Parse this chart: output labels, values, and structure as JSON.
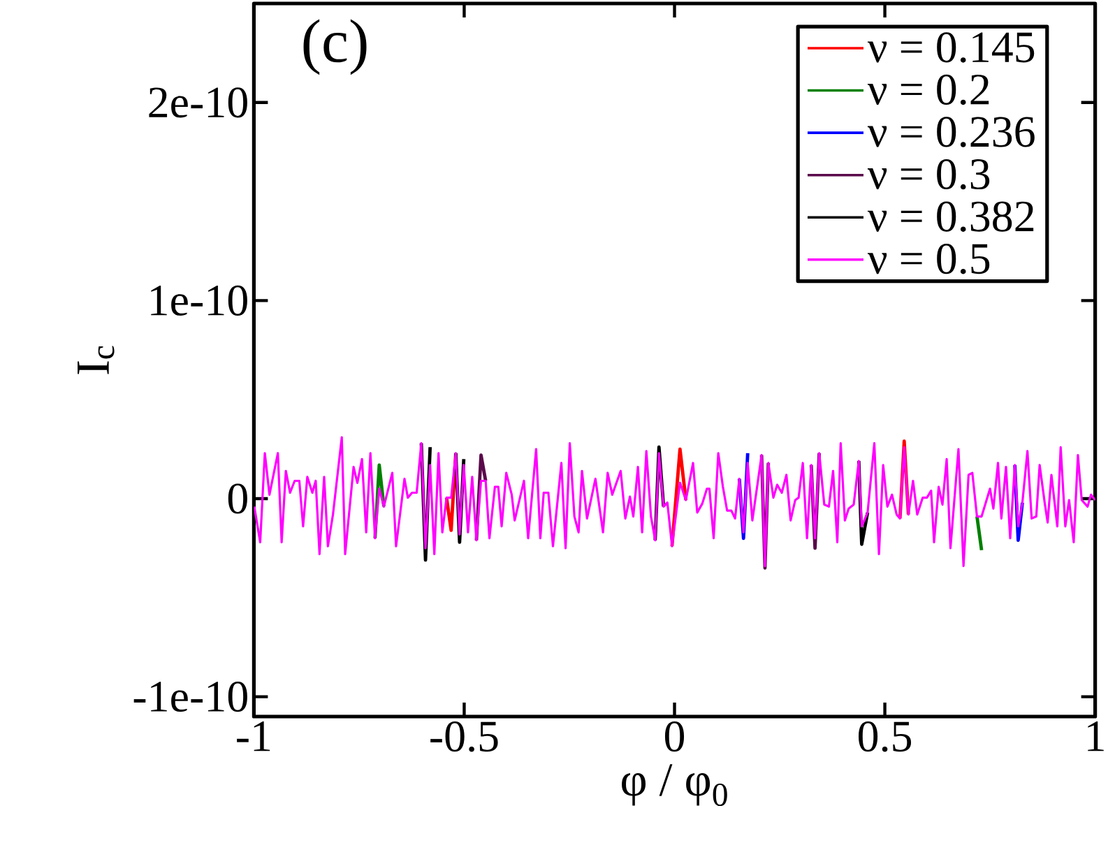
{
  "chart_data": {
    "type": "line",
    "xlabel": "φ / φ$_{0}$",
    "ylabel": "I$_{c}$",
    "annotations": [
      "(c)"
    ],
    "xlim": [
      -1,
      1
    ],
    "ylim": [
      -1.1e-10,
      2.5e-10
    ],
    "xticks": [
      -1,
      -0.5,
      0,
      0.5,
      1
    ],
    "yticks": [
      {
        "value": -1e-10,
        "label": "-1e-10"
      },
      {
        "value": 0,
        "label": "0"
      },
      {
        "value": 1e-10,
        "label": "1e-10"
      },
      {
        "value": 2e-10,
        "label": "2e-10"
      }
    ],
    "grid": false,
    "legend": "top right",
    "x": [
      -0.999,
      -0.985,
      -0.974,
      -0.963,
      -0.943,
      -0.934,
      -0.924,
      -0.914,
      -0.903,
      -0.892,
      -0.883,
      -0.873,
      -0.861,
      -0.853,
      -0.844,
      -0.833,
      -0.824,
      -0.812,
      -0.791,
      -0.783,
      -0.763,
      -0.754,
      -0.743,
      -0.733,
      -0.723,
      -0.712,
      -0.702,
      -0.691,
      -0.671,
      -0.662,
      -0.642,
      -0.634,
      -0.624,
      -0.613,
      -0.602,
      -0.592,
      -0.581,
      -0.571,
      -0.561,
      -0.552,
      -0.542,
      -0.531,
      -0.52,
      -0.511,
      -0.501,
      -0.491,
      -0.481,
      -0.471,
      -0.46,
      -0.449,
      -0.44,
      -0.427,
      -0.419,
      -0.411,
      -0.4,
      -0.387,
      -0.38,
      -0.358,
      -0.348,
      -0.329,
      -0.319,
      -0.311,
      -0.3,
      -0.289,
      -0.269,
      -0.259,
      -0.249,
      -0.238,
      -0.228,
      -0.22,
      -0.208,
      -0.188,
      -0.17,
      -0.159,
      -0.148,
      -0.128,
      -0.117,
      -0.106,
      -0.098,
      -0.087,
      -0.077,
      -0.067,
      -0.056,
      -0.046,
      -0.037,
      -0.026,
      -0.017,
      -0.006,
      0.013,
      0.027,
      0.044,
      0.054,
      0.066,
      0.077,
      0.083,
      0.093,
      0.104,
      0.115,
      0.125,
      0.135,
      0.144,
      0.154,
      0.164,
      0.174,
      0.185,
      0.207,
      0.215,
      0.223,
      0.235,
      0.244,
      0.255,
      0.266,
      0.276,
      0.287,
      0.295,
      0.305,
      0.315,
      0.325,
      0.334,
      0.344,
      0.356,
      0.367,
      0.377,
      0.387,
      0.395,
      0.405,
      0.414,
      0.426,
      0.438,
      0.445,
      0.459,
      0.475,
      0.486,
      0.496,
      0.506,
      0.517,
      0.528,
      0.536,
      0.546,
      0.556,
      0.567,
      0.577,
      0.59,
      0.6,
      0.61,
      0.617,
      0.628,
      0.637,
      0.647,
      0.656,
      0.675,
      0.687,
      0.699,
      0.708,
      0.719,
      0.73,
      0.75,
      0.758,
      0.769,
      0.777,
      0.788,
      0.798,
      0.809,
      0.817,
      0.827,
      0.839,
      0.849,
      0.86,
      0.868,
      0.88,
      0.887,
      0.896,
      0.91,
      0.918,
      0.929,
      0.938,
      0.949,
      0.959,
      0.968,
      0.982,
      0.99,
      1.0
    ],
    "series": [
      {
        "name": "ν = 0.145",
        "color": "#ff0000",
        "x": [
          -0.542,
          -0.531,
          -0.52,
          -0.511,
          -0.006,
          0.013,
          0.027,
          0.044,
          0.536,
          0.546,
          0.556
        ],
        "values": [
          5e-13,
          -1.6e-11,
          2.3e-11,
          null,
          -2.4e-11,
          2.5e-11,
          -7e-13,
          null,
          -1e-11,
          2.9e-11,
          -8e-12
        ]
      },
      {
        "name": "ν = 0.2",
        "color": "#008000",
        "x": [
          -0.712,
          -0.702,
          -0.691,
          -0.671,
          0.719,
          0.73
        ],
        "values": [
          -2e-11,
          1.7e-11,
          -4e-12,
          null,
          -9e-12,
          -2.6e-11
        ]
      },
      {
        "name": "ν = 0.236",
        "color": "#0000ff",
        "x": [
          0.154,
          0.164,
          0.174,
          0.185,
          0.809,
          0.817,
          0.827
        ],
        "values": [
          1e-11,
          -2e-11,
          2.3e-11,
          null,
          1.7e-11,
          -2.1e-11,
          -2e-12
        ]
      },
      {
        "name": "ν = 0.3",
        "color": "#5a0a4a",
        "x": [
          -0.471,
          -0.46,
          -0.449,
          -0.44,
          0.207,
          0.215,
          0.223,
          0.235,
          0.325,
          0.334,
          0.344
        ],
        "values": [
          -2.1e-11,
          2.2e-11,
          9e-12,
          null,
          2.2e-11,
          -3.5e-11,
          1.8e-11,
          null,
          1.7e-11,
          -2.5e-11,
          2.3e-11
        ]
      },
      {
        "name": "ν = 0.382",
        "color": "#000000",
        "x": [
          -0.602,
          -0.592,
          -0.581,
          -0.571,
          -0.52,
          -0.511,
          -0.501,
          -0.491,
          -0.046,
          -0.037,
          -0.026,
          -0.017,
          0.438,
          0.445,
          0.459
        ],
        "values": [
          2.8e-11,
          -3.1e-11,
          2.6e-11,
          null,
          2.3e-11,
          -2.2e-11,
          2e-11,
          null,
          -2.1e-11,
          2.6e-11,
          -4e-12,
          null,
          1.9e-11,
          -2.3e-11,
          -7e-12
        ]
      },
      {
        "name": "ν = 0.5",
        "color": "#ff00ff",
        "values": [
          -4e-12,
          -2.2e-11,
          2.3e-11,
          2e-12,
          2.3e-11,
          -2.2e-11,
          1.4e-11,
          3e-12,
          9e-12,
          9e-12,
          -1.4e-11,
          1.1e-11,
          3e-12,
          9e-12,
          -2.8e-11,
          1.1e-11,
          -2.4e-11,
          -8e-12,
          3.1e-11,
          -2.8e-11,
          1.6e-11,
          8e-12,
          2e-11,
          -1.7e-11,
          2.3e-11,
          -2e-11,
          5e-12,
          -4e-12,
          1.3e-11,
          -2.4e-11,
          1e-11,
          5e-13,
          3e-12,
          3e-12,
          2.8e-11,
          -2.5e-11,
          1.7e-11,
          -2.8e-11,
          2.3e-11,
          -1.7e-11,
          5e-13,
          5e-13,
          2.3e-11,
          -1.8e-11,
          1.7e-11,
          -1.7e-11,
          1.1e-11,
          -2.1e-11,
          9e-12,
          9e-12,
          -2e-11,
          6e-12,
          6e-12,
          -1.4e-11,
          1.3e-11,
          2e-12,
          -1.1e-11,
          9e-12,
          -2e-11,
          2.5e-11,
          -2e-11,
          3e-12,
          3e-12,
          -2.4e-11,
          1.8e-11,
          -2.5e-11,
          2.8e-11,
          -9e-12,
          -1.7e-11,
          1.4e-11,
          -1e-11,
          1e-11,
          -1.7e-11,
          1.3e-11,
          2e-12,
          1.4e-11,
          -1e-11,
          1e-12,
          -9e-12,
          1.6e-11,
          -1.7e-11,
          2.4e-11,
          -9e-12,
          -2.1e-11,
          2.3e-11,
          -4e-12,
          -2e-12,
          -2.4e-11,
          8e-12,
          -7e-13,
          1.8e-11,
          -7e-12,
          -2.5e-12,
          5e-12,
          5e-12,
          -2e-11,
          2.3e-11,
          6e-12,
          -6e-12,
          -6e-12,
          -1e-11,
          1e-11,
          -1.7e-11,
          1.8e-11,
          -1.1e-11,
          2.2e-11,
          -3.4e-11,
          1.8e-11,
          5e-13,
          7e-12,
          3e-12,
          1.2e-11,
          -1.1e-11,
          -7e-13,
          5e-13,
          1.8e-11,
          -2e-11,
          1.7e-11,
          -2e-11,
          2.3e-11,
          -3e-12,
          -4e-12,
          1.4e-11,
          -2.2e-11,
          2.8e-11,
          -1.1e-11,
          -5e-12,
          -3e-12,
          1.9e-11,
          -1.4e-11,
          -7e-12,
          2.8e-11,
          -2.8e-11,
          1.7e-11,
          -4e-12,
          2e-12,
          -8e-12,
          -1e-11,
          2.6e-11,
          -8e-12,
          9e-12,
          -8e-12,
          5e-13,
          5e-13,
          4e-12,
          -2.2e-11,
          6e-12,
          -3e-12,
          2e-11,
          -2.5e-11,
          2.5e-11,
          -3.4e-11,
          1.2e-11,
          1.3e-11,
          -9e-12,
          -9e-12,
          5e-12,
          -5e-12,
          1.8e-11,
          -1e-11,
          1.6e-11,
          -2e-11,
          1.7e-11,
          -1.4e-11,
          -2e-12,
          2.4e-11,
          -1e-11,
          -9e-12,
          1.7e-11,
          -2e-12,
          -1.2e-11,
          1.2e-11,
          -1.4e-11,
          2.6e-11,
          -1.4e-11,
          -7e-13,
          -2.2e-11,
          2.2e-11,
          -7e-13,
          -4e-12,
          2e-12,
          -7e-13
        ]
      }
    ]
  }
}
